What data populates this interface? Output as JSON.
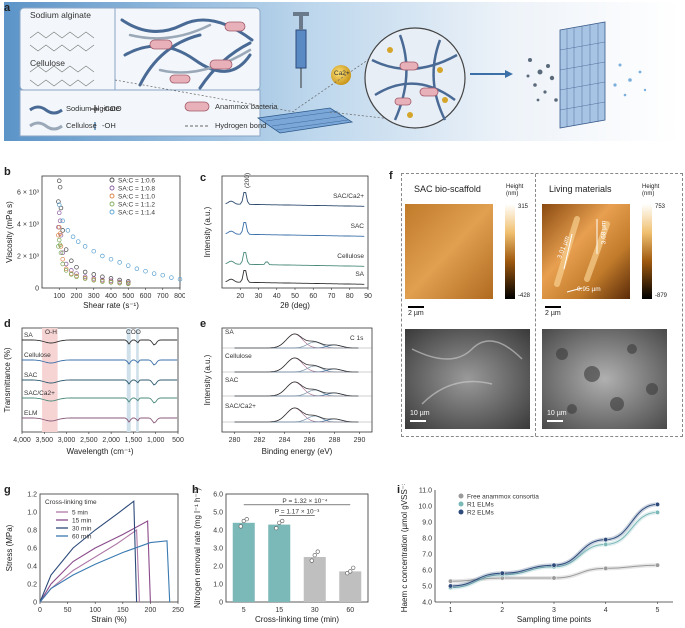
{
  "panels": {
    "a": {
      "label": "a",
      "inset_top_title": "Sodium alginate",
      "inset_bottom_title": "Cellulose",
      "legend": {
        "sodium_alginate": "Sodium alginate",
        "coo": "-COO",
        "anammox": "Anammox bacteria",
        "cellulose": "Cellulose",
        "oh": "-OH",
        "hbond": "Hydrogen bond"
      },
      "ion_label": "Ca2+"
    },
    "b": {
      "label": "b"
    },
    "c": {
      "label": "c"
    },
    "d": {
      "label": "d"
    },
    "e": {
      "label": "e"
    },
    "f": {
      "label": "f",
      "left_title": "SAC bio-scaffold",
      "right_title": "Living materials",
      "cbar_title": "Height (nm)",
      "left_cbar_top": "315",
      "left_cbar_bottom": "-428",
      "right_cbar_top": "753",
      "right_cbar_bottom": "-879",
      "scale_afm": "2 µm",
      "scale_sem": "10 µm",
      "measure_1": "3.01 µm",
      "measure_2": "3.68 µm",
      "measure_3": "0.95 µm"
    },
    "g": {
      "label": "g"
    },
    "h": {
      "label": "h"
    },
    "i": {
      "label": "i"
    }
  },
  "chart_data": [
    {
      "id": "b",
      "type": "scatter",
      "xlabel": "Shear rate (s⁻¹)",
      "ylabel": "Viscosity (mPa s)",
      "xlim": [
        0,
        800
      ],
      "ylim": [
        0,
        7000
      ],
      "x_ticks": [
        "100",
        "200",
        "300",
        "400",
        "500",
        "600",
        "700",
        "800"
      ],
      "y_ticks": [
        "0",
        "2 × 10³",
        "4 × 10³",
        "6 × 10³",
        "8 × 10³"
      ],
      "colors": [
        "#4a4a4a",
        "#8c5a9e",
        "#d8824a",
        "#7dab5a",
        "#5aa0d0"
      ],
      "series": [
        {
          "name": "SA:C = 1:0.6",
          "x": [
            95,
            100,
            105,
            110,
            120,
            140,
            170,
            200,
            250,
            300,
            350,
            400,
            450,
            500
          ],
          "y": [
            5400,
            6700,
            6300,
            5000,
            3600,
            2400,
            1700,
            1300,
            1000,
            850,
            700,
            600,
            500,
            420
          ]
        },
        {
          "name": "SA:C = 1:0.8",
          "x": [
            95,
            100,
            105,
            110,
            120,
            140,
            170,
            200,
            250,
            300,
            350,
            400,
            450,
            500
          ],
          "y": [
            3800,
            4700,
            4200,
            3300,
            2200,
            1500,
            1100,
            900,
            700,
            600,
            500,
            450,
            380,
            330
          ]
        },
        {
          "name": "SA:C = 1:1.0",
          "x": [
            95,
            100,
            105,
            110,
            120,
            140,
            170,
            200,
            250,
            300,
            350,
            400,
            450,
            500
          ],
          "y": [
            3300,
            3800,
            3400,
            2600,
            1800,
            1200,
            900,
            750,
            620,
            520,
            430,
            380,
            330,
            290
          ]
        },
        {
          "name": "SA:C = 1:1.2",
          "x": [
            95,
            100,
            105,
            110,
            120,
            140,
            170,
            200,
            250,
            300,
            350,
            400,
            450,
            500
          ],
          "y": [
            2600,
            3000,
            2700,
            2200,
            1500,
            1100,
            850,
            700,
            580,
            480,
            400,
            350,
            300,
            260
          ]
        },
        {
          "name": "SA:C = 1:1.4",
          "x": [
            100,
            120,
            150,
            180,
            210,
            250,
            300,
            350,
            400,
            450,
            500,
            550,
            600,
            650,
            700,
            750,
            800
          ],
          "y": [
            5200,
            4200,
            3600,
            3200,
            2900,
            2600,
            2300,
            2000,
            1800,
            1600,
            1400,
            1200,
            1050,
            900,
            800,
            650,
            550
          ]
        }
      ]
    },
    {
      "id": "c",
      "type": "line",
      "xlabel": "2θ (deg)",
      "ylabel": "Intensity (a.u.)",
      "xlim": [
        10,
        90
      ],
      "x_ticks": [
        "20",
        "30",
        "40",
        "50",
        "60",
        "70",
        "80",
        "90"
      ],
      "peak_label": "(200)",
      "series": [
        {
          "name": "SAC/Ca2+",
          "color": "#2d4a6e",
          "offset": 3
        },
        {
          "name": "SAC",
          "color": "#3a6fa8",
          "offset": 2
        },
        {
          "name": "Cellulose",
          "color": "#4a8a7a",
          "offset": 1
        },
        {
          "name": "SA",
          "color": "#333333",
          "offset": 0
        }
      ]
    },
    {
      "id": "d",
      "type": "line",
      "xlabel": "Wavelength (cm⁻¹)",
      "ylabel": "Transmittance (%)",
      "xlim": [
        4000,
        500
      ],
      "x_ticks": [
        "4,000",
        "3,500",
        "3,000",
        "2,500",
        "2,000",
        "1,500",
        "1,000",
        "500"
      ],
      "band_labels": [
        "O-H",
        "COO"
      ],
      "series": [
        {
          "name": "SA",
          "color": "#333333"
        },
        {
          "name": "Cellulose",
          "color": "#3a6fa8"
        },
        {
          "name": "SAC",
          "color": "#2d5a6e"
        },
        {
          "name": "SAC/Ca2+",
          "color": "#4a8a7a"
        },
        {
          "name": "ELM",
          "color": "#8a5a7a"
        }
      ]
    },
    {
      "id": "e",
      "type": "line",
      "xlabel": "Binding energy (eV)",
      "ylabel": "Intensity (a.u.)",
      "xlim": [
        279,
        291
      ],
      "x_ticks": [
        "280",
        "282",
        "284",
        "286",
        "288",
        "290"
      ],
      "annotation": "C 1s",
      "series": [
        {
          "name": "SA"
        },
        {
          "name": "Cellulose"
        },
        {
          "name": "SAC"
        },
        {
          "name": "SAC/Ca2+"
        }
      ]
    },
    {
      "id": "g",
      "type": "line",
      "xlabel": "Strain (%)",
      "ylabel": "Stress (MPa)",
      "legend_title": "Cross-linking time",
      "xlim": [
        0,
        250
      ],
      "ylim": [
        0,
        1.2
      ],
      "x_ticks": [
        "0",
        "50",
        "100",
        "150",
        "200",
        "250"
      ],
      "y_ticks": [
        "0",
        "0.2",
        "0.4",
        "0.6",
        "0.8",
        "1.0",
        "1.2"
      ],
      "series": [
        {
          "name": "5 min",
          "color": "#b07aa8",
          "x": [
            0,
            20,
            60,
            100,
            140,
            175,
            180
          ],
          "y": [
            0,
            0.15,
            0.35,
            0.5,
            0.65,
            0.8,
            0
          ]
        },
        {
          "name": "15 min",
          "color": "#8a4a8a",
          "x": [
            0,
            20,
            60,
            100,
            150,
            195,
            200
          ],
          "y": [
            0,
            0.2,
            0.45,
            0.6,
            0.75,
            0.9,
            0
          ]
        },
        {
          "name": "30 min",
          "color": "#2d4a7a",
          "x": [
            0,
            20,
            60,
            100,
            140,
            170,
            175
          ],
          "y": [
            0,
            0.3,
            0.6,
            0.8,
            0.98,
            1.12,
            0
          ]
        },
        {
          "name": "60 min",
          "color": "#3a7ab0",
          "x": [
            0,
            20,
            60,
            100,
            150,
            200,
            230,
            235
          ],
          "y": [
            0,
            0.15,
            0.3,
            0.42,
            0.55,
            0.66,
            0.68,
            0
          ]
        }
      ]
    },
    {
      "id": "h",
      "type": "bar",
      "xlabel": "Cross-linking time (min)",
      "ylabel": "Nitrogen removal rate (mg l⁻¹ h⁻¹)",
      "ylim": [
        0,
        6
      ],
      "y_ticks": [
        "0",
        "1.0",
        "2.0",
        "3.0",
        "4.0",
        "5.0",
        "6.0"
      ],
      "categories": [
        "5",
        "15",
        "30",
        "60"
      ],
      "values": [
        4.4,
        4.3,
        2.5,
        1.7
      ],
      "colors": [
        "#7bb8b8",
        "#7bb8b8",
        "#bfbfbf",
        "#bfbfbf"
      ],
      "points": [
        [
          4.2,
          4.5,
          4.6
        ],
        [
          4.1,
          4.4,
          4.5
        ],
        [
          2.3,
          2.6,
          2.8
        ],
        [
          1.6,
          1.7,
          1.9
        ]
      ],
      "annotations": [
        "P = 1.32 × 10⁻⁴",
        "P = 1.17 × 10⁻³"
      ]
    },
    {
      "id": "i",
      "type": "line",
      "xlabel": "Sampling time points",
      "ylabel": "Haem c concentration (µmol gVSS⁻¹)",
      "xlim": [
        0.7,
        5.3
      ],
      "ylim": [
        4.0,
        11.0
      ],
      "x_ticks": [
        "1",
        "2",
        "3",
        "4",
        "5"
      ],
      "y_ticks": [
        "4.0",
        "5.0",
        "6.0",
        "7.0",
        "8.0",
        "9.0",
        "10.0",
        "11.0"
      ],
      "categories": [
        1,
        2,
        3,
        4,
        5
      ],
      "series": [
        {
          "name": "Free anammox consortia",
          "color": "#9a9a9a",
          "values": [
            5.3,
            5.5,
            5.5,
            6.1,
            6.3
          ]
        },
        {
          "name": "R1 ELMs",
          "color": "#7bb8b8",
          "values": [
            4.9,
            5.7,
            6.2,
            7.6,
            9.6
          ]
        },
        {
          "name": "R2 ELMs",
          "color": "#2d4a7a",
          "values": [
            5.0,
            5.8,
            6.3,
            7.9,
            10.1
          ]
        }
      ]
    }
  ]
}
